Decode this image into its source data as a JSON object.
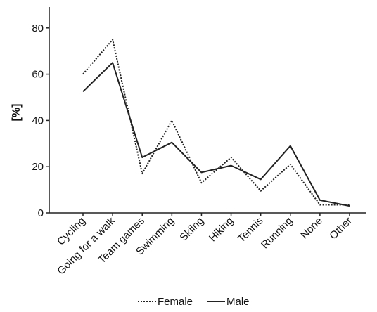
{
  "chart_data": {
    "type": "line",
    "ylabel": "[%]",
    "xlabel": "",
    "ylim": [
      0,
      85
    ],
    "yticks": [
      0,
      20,
      40,
      60,
      80
    ],
    "categories": [
      "Cycling",
      "Going for a walk",
      "Team games",
      "Swimming",
      "Skiing",
      "Hiking",
      "Tennis",
      "Running",
      "None",
      "Other"
    ],
    "series": [
      {
        "name": "Female",
        "style": "dotted",
        "color": "#222222",
        "values": [
          60,
          75,
          17,
          40,
          13,
          24,
          9.5,
          21,
          3.5,
          3.5
        ]
      },
      {
        "name": "Male",
        "style": "solid",
        "color": "#222222",
        "values": [
          52.5,
          65,
          24,
          30.5,
          17.5,
          20.5,
          14.5,
          29,
          5.5,
          3
        ]
      }
    ],
    "legend_position": "bottom"
  }
}
